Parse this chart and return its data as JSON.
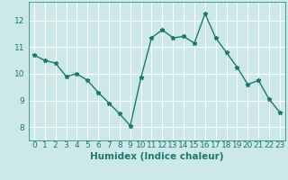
{
  "x": [
    0,
    1,
    2,
    3,
    4,
    5,
    6,
    7,
    8,
    9,
    10,
    11,
    12,
    13,
    14,
    15,
    16,
    17,
    18,
    19,
    20,
    21,
    22,
    23
  ],
  "y": [
    10.7,
    10.5,
    10.4,
    9.9,
    10.0,
    9.75,
    9.3,
    8.9,
    8.5,
    8.05,
    9.85,
    11.35,
    11.65,
    11.35,
    11.4,
    11.15,
    12.25,
    11.35,
    10.8,
    10.25,
    9.6,
    9.75,
    9.05,
    8.55
  ],
  "line_color": "#1a7a6e",
  "marker": "*",
  "marker_size": 3.5,
  "xlabel": "Humidex (Indice chaleur)",
  "ylim": [
    7.5,
    12.7
  ],
  "xlim": [
    -0.5,
    23.5
  ],
  "yticks": [
    8,
    9,
    10,
    11,
    12
  ],
  "xtick_labels": [
    "0",
    "1",
    "2",
    "3",
    "4",
    "5",
    "6",
    "7",
    "8",
    "9",
    "10",
    "11",
    "12",
    "13",
    "14",
    "15",
    "16",
    "17",
    "18",
    "19",
    "20",
    "21",
    "22",
    "23"
  ],
  "bg_color": "#cde8e8",
  "grid_color": "#ffffff",
  "xlabel_fontsize": 7.5,
  "tick_fontsize": 6.5,
  "linewidth": 1.0
}
